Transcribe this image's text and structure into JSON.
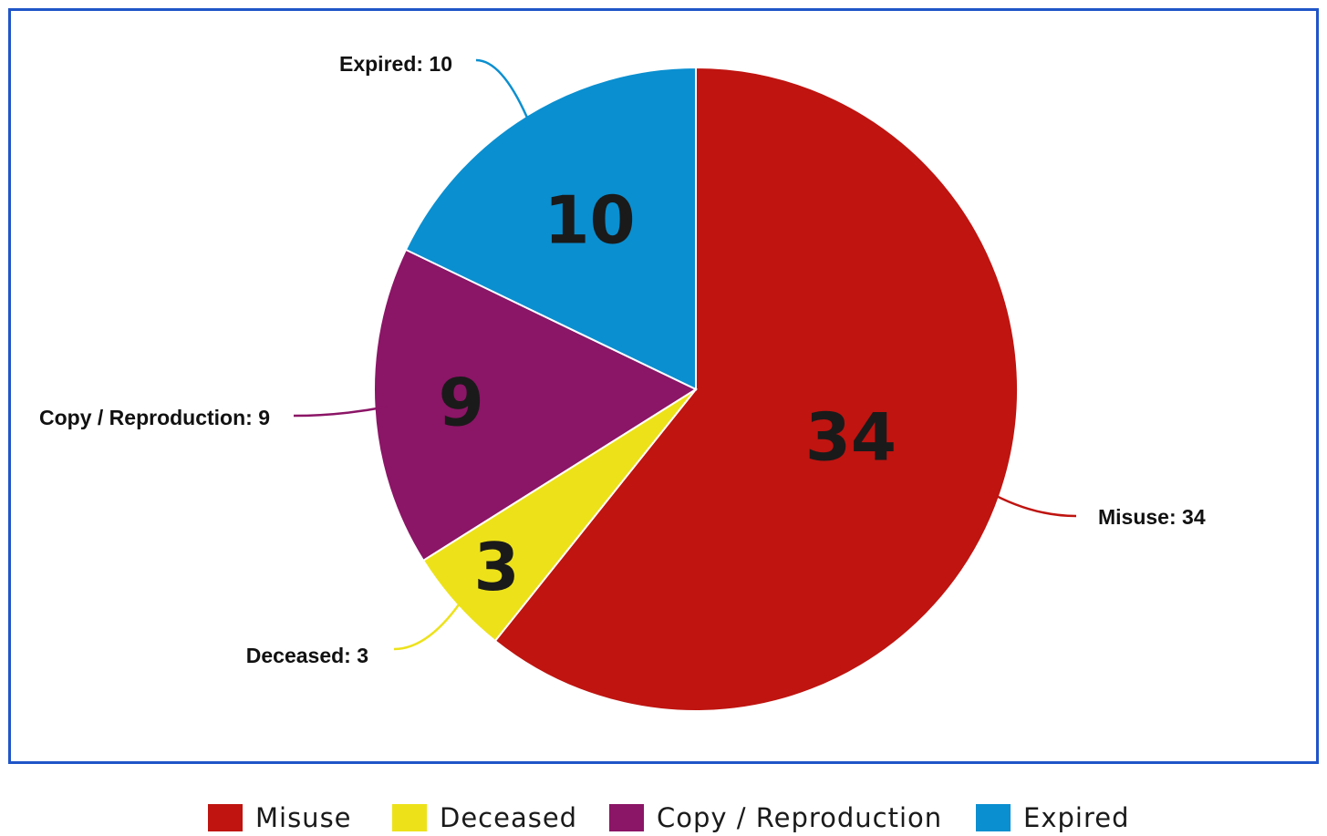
{
  "chart_data": {
    "type": "pie",
    "title": "",
    "series": [
      {
        "name": "Misuse",
        "value": 34,
        "color": "#bf1410",
        "callout": "Misuse: 34",
        "inner_label": "34"
      },
      {
        "name": "Deceased",
        "value": 3,
        "color": "#ede21a",
        "callout": "Deceased: 3",
        "inner_label": "3"
      },
      {
        "name": "Copy / Reproduction",
        "value": 9,
        "color": "#8b1566",
        "callout": "Copy / Reproduction: 9",
        "inner_label": "9"
      },
      {
        "name": "Expired",
        "value": 10,
        "color": "#0a8fd0",
        "callout": "Expired: 10",
        "inner_label": "10"
      }
    ],
    "start_angle": "12 o'clock",
    "direction": "clockwise",
    "legend_position": "bottom",
    "border_color": "#1f55c8"
  }
}
